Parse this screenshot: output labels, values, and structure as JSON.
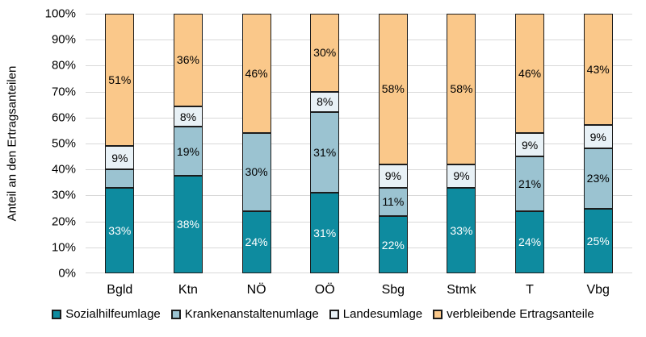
{
  "chart_data": {
    "type": "bar",
    "subtype": "stacked-percent",
    "title": "",
    "ylabel": "Anteil an den Ertragsanteilen",
    "xlabel": "",
    "ylim": [
      0,
      100
    ],
    "grid": true,
    "legend_position": "bottom",
    "y_ticks": [
      "100%",
      "90%",
      "80%",
      "70%",
      "60%",
      "50%",
      "40%",
      "30%",
      "20%",
      "10%",
      "0%"
    ],
    "categories": [
      "Bgld",
      "Ktn",
      "NÖ",
      "OÖ",
      "Sbg",
      "Stmk",
      "T",
      "Vbg"
    ],
    "series": [
      {
        "name": "Sozialhilfeumlage",
        "color": "#0e8b9f",
        "label_color": "#ffffff",
        "values": [
          33,
          38,
          24,
          31,
          22,
          33,
          24,
          25
        ],
        "labels": [
          "33%",
          "38%",
          "24%",
          "31%",
          "22%",
          "33%",
          "24%",
          "25%"
        ]
      },
      {
        "name": "Krankenanstaltenumlage",
        "color": "#9bc3d1",
        "label_color": "#000000",
        "values": [
          7,
          19,
          30,
          31,
          11,
          0,
          21,
          23
        ],
        "labels": [
          "",
          "19%",
          "30%",
          "31%",
          "11%",
          "",
          "21%",
          "23%"
        ]
      },
      {
        "name": "Landesumlage",
        "color": "#e8f1f6",
        "label_color": "#000000",
        "values": [
          9,
          8,
          0,
          8,
          9,
          9,
          9,
          9
        ],
        "labels": [
          "9%",
          "8%",
          "",
          "8%",
          "9%",
          "9%",
          "9%",
          "9%"
        ]
      },
      {
        "name": "verbleibende Ertragsanteile",
        "color": "#fac88a",
        "label_color": "#000000",
        "values": [
          51,
          36,
          46,
          30,
          58,
          58,
          46,
          43
        ],
        "labels": [
          "51%",
          "36%",
          "46%",
          "30%",
          "58%",
          "58%",
          "46%",
          "43%"
        ]
      }
    ]
  }
}
